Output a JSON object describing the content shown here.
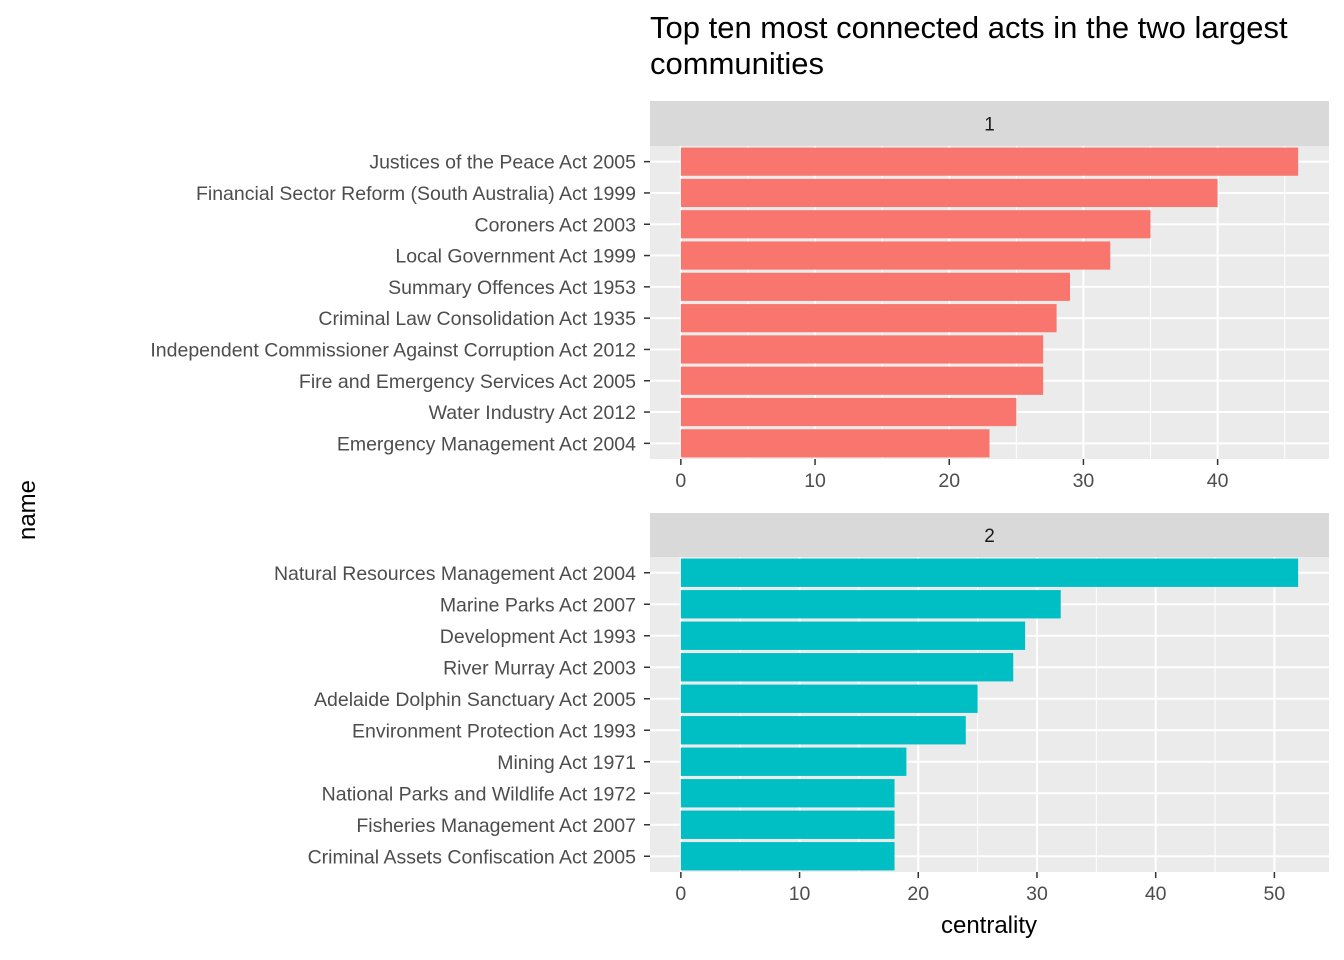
{
  "chart_data": {
    "type": "bar",
    "title": "Top ten most connected acts in the two largest communities",
    "xlabel": "centrality",
    "ylabel": "name",
    "panels": [
      {
        "strip_label": "1",
        "color": "#F8766D",
        "xlim": [
          -2.3,
          48.3
        ],
        "ticks": [
          0,
          10,
          20,
          30,
          40
        ],
        "categories": [
          "Justices of the Peace Act 2005",
          "Financial Sector Reform (South Australia) Act 1999",
          "Coroners Act 2003",
          "Local Government Act 1999",
          "Summary Offences Act 1953",
          "Criminal Law Consolidation Act 1935",
          "Independent Commissioner Against Corruption Act 2012",
          "Fire and Emergency Services Act 2005",
          "Water Industry Act 2012",
          "Emergency Management Act 2004"
        ],
        "values": [
          46,
          40,
          35,
          32,
          29,
          28,
          27,
          27,
          25,
          23
        ]
      },
      {
        "strip_label": "2",
        "color": "#00BFC4",
        "xlim": [
          -2.6,
          54.6
        ],
        "ticks": [
          0,
          10,
          20,
          30,
          40,
          50
        ],
        "categories": [
          "Natural Resources Management Act 2004",
          "Marine Parks Act 2007",
          "Development Act 1993",
          "River Murray Act 2003",
          "Adelaide Dolphin Sanctuary Act 2005",
          "Environment Protection Act 1993",
          "Mining Act 1971",
          "National Parks and Wildlife Act 1972",
          "Fisheries Management Act 2007",
          "Criminal Assets Confiscation Act 2005"
        ],
        "values": [
          52,
          32,
          29,
          28,
          25,
          24,
          19,
          18,
          18,
          18
        ]
      }
    ]
  }
}
